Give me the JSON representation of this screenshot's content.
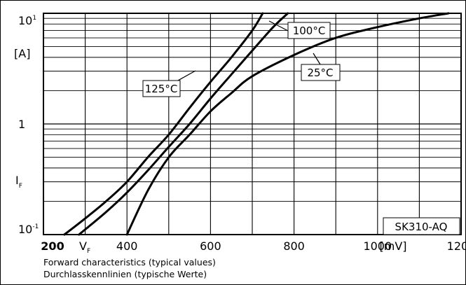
{
  "chart_data": {
    "type": "line",
    "xscale": "linear",
    "yscale": "log",
    "xlim": [
      200,
      1200
    ],
    "ylim": [
      0.1,
      10
    ],
    "x_ticks": [
      {
        "value": 200,
        "label": "200"
      },
      {
        "value": 400,
        "label": "400"
      },
      {
        "value": 600,
        "label": "600"
      },
      {
        "value": 800,
        "label": "800"
      },
      {
        "value": 1000,
        "label": "1000"
      },
      {
        "value": 1200,
        "label": "1200"
      }
    ],
    "x_symbol": {
      "main": "V",
      "sub": "F"
    },
    "x_unit": "[mV]",
    "y_ticks": [
      {
        "value": 10,
        "base": "10",
        "exp": "1"
      },
      {
        "value": 1,
        "base": "1",
        "exp": ""
      },
      {
        "value": 0.1,
        "base": "10",
        "exp": "-1"
      }
    ],
    "y_symbol": {
      "main": "I",
      "sub": "F"
    },
    "y_unit": "[A]",
    "grid": true,
    "series": [
      {
        "name": "125°C",
        "x": [
          250,
          300,
          350,
          400,
          450,
          500,
          550,
          600,
          650,
          700,
          725
        ],
        "y": [
          0.1,
          0.14,
          0.2,
          0.3,
          0.5,
          0.8,
          1.4,
          2.4,
          4.0,
          7.0,
          10.0
        ]
      },
      {
        "name": "100°C",
        "x": [
          285,
          350,
          400,
          450,
          500,
          550,
          600,
          650,
          700,
          750,
          785
        ],
        "y": [
          0.1,
          0.16,
          0.24,
          0.38,
          0.62,
          1.0,
          1.7,
          2.8,
          4.6,
          7.5,
          10.0
        ]
      },
      {
        "name": "25°C",
        "x": [
          400,
          450,
          500,
          550,
          600,
          650,
          700,
          800,
          900,
          1000,
          1100,
          1170
        ],
        "y": [
          0.1,
          0.25,
          0.5,
          0.8,
          1.3,
          1.9,
          2.7,
          4.2,
          6.0,
          7.5,
          9.0,
          10.0
        ]
      }
    ],
    "annotations": [
      "125°C",
      "100°C",
      "25°C"
    ],
    "part_label": "SK310-AQ",
    "caption_lines": [
      "Forward characteristics (typical values)",
      "Durchlasskennlinien (typische Werte)"
    ]
  }
}
